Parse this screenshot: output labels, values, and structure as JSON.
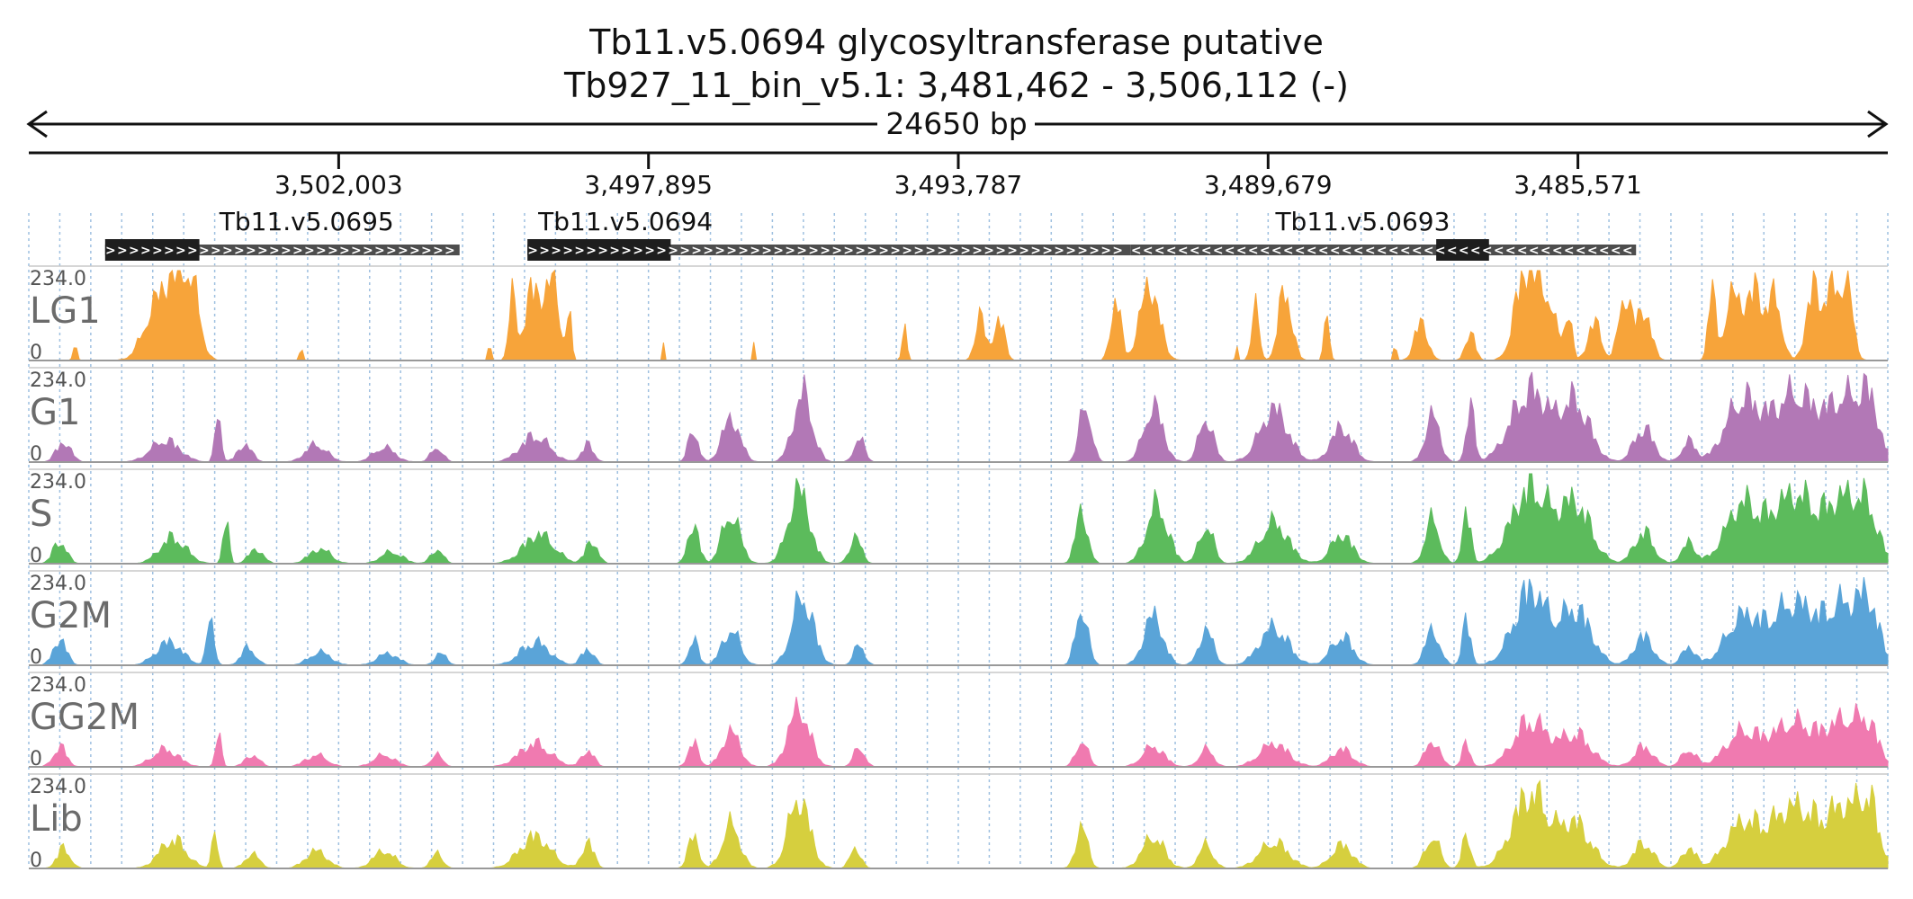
{
  "title": {
    "gene": "Tb11.v5.0694  glycosyltransferase  putative",
    "location": "Tb927_11_bin_v5.1: 3,481,462 - 3,506,112 (-)"
  },
  "span_label": "24650 bp",
  "colors": {
    "LG1": "#f7a43a",
    "G1": "#b278b6",
    "S": "#5cbb5c",
    "G2M": "#5aa4d8",
    "GG2M": "#f07ab0",
    "Lib": "#d6cf3e",
    "gene_exon": "#1e1e1e",
    "gene_utr": "#4d4d4d",
    "grid": "#9ec0e0"
  },
  "chart_data": {
    "type": "area",
    "x_axis": {
      "range": [
        3506112,
        3481462
      ],
      "reversed": true,
      "strand": "-",
      "tick_positions": [
        3502003,
        3497895,
        3493787,
        3489679,
        3485571
      ],
      "tick_labels": [
        "3,502,003",
        "3,497,895",
        "3,493,787",
        "3,489,679",
        "3,485,571"
      ]
    },
    "genes": [
      {
        "name": "Tb11.v5.0695",
        "start": 3505100,
        "end": 3500400,
        "cds_start": 3505100,
        "cds_end": 3503850,
        "direction": "forward"
      },
      {
        "name": "Tb11.v5.0694",
        "start": 3499500,
        "end": 3491500,
        "cds_start": 3499500,
        "cds_end": 3497600,
        "direction": "forward"
      },
      {
        "name": "Tb11.v5.0693",
        "start": 3491500,
        "end": 3484800,
        "cds_start": 3487450,
        "cds_end": 3486750,
        "direction": "reverse"
      }
    ],
    "tracks": [
      {
        "name": "LG1",
        "ymin_label": "0",
        "ymax_label": "234.0",
        "ylim": [
          0,
          234
        ],
        "peaks": [
          [
            3505500,
            60,
            15
          ],
          [
            3504400,
            200,
            110
          ],
          [
            3504150,
            250,
            70
          ],
          [
            3503950,
            234,
            70
          ],
          [
            3502500,
            50,
            14
          ],
          [
            3500000,
            60,
            12
          ],
          [
            3499700,
            200,
            30
          ],
          [
            3499400,
            250,
            85
          ],
          [
            3499150,
            234,
            50
          ],
          [
            3498950,
            160,
            20
          ],
          [
            3497700,
            60,
            8
          ],
          [
            3496500,
            60,
            8
          ],
          [
            3494500,
            100,
            20
          ],
          [
            3493500,
            160,
            40
          ],
          [
            3493250,
            150,
            45
          ],
          [
            3491700,
            234,
            40
          ],
          [
            3491250,
            260,
            80
          ],
          [
            3490100,
            60,
            8
          ],
          [
            3489850,
            200,
            30
          ],
          [
            3489450,
            250,
            55
          ],
          [
            3488900,
            200,
            20
          ],
          [
            3488000,
            60,
            12
          ],
          [
            3487650,
            130,
            55
          ],
          [
            3487000,
            100,
            40
          ],
          [
            3486300,
            234,
            80
          ],
          [
            3486050,
            250,
            100
          ],
          [
            3485700,
            160,
            30
          ],
          [
            3485350,
            130,
            55
          ],
          [
            3484950,
            234,
            50
          ],
          [
            3484700,
            180,
            60
          ],
          [
            3483800,
            234,
            30
          ],
          [
            3483500,
            220,
            80
          ],
          [
            3483200,
            230,
            70
          ],
          [
            3482950,
            200,
            55
          ],
          [
            3482450,
            234,
            60
          ],
          [
            3482200,
            234,
            70
          ],
          [
            3482000,
            230,
            50
          ]
        ]
      },
      {
        "name": "G1",
        "ymin_label": "0",
        "ymax_label": "234.0",
        "ylim": [
          0,
          234
        ],
        "peaks": [
          [
            3505650,
            70,
            60
          ],
          [
            3504300,
            75,
            120
          ],
          [
            3503600,
            180,
            25
          ],
          [
            3503250,
            60,
            60
          ],
          [
            3502300,
            60,
            90
          ],
          [
            3501400,
            50,
            90
          ],
          [
            3500700,
            50,
            50
          ],
          [
            3499400,
            90,
            120
          ],
          [
            3498700,
            60,
            50
          ],
          [
            3497300,
            120,
            40
          ],
          [
            3496800,
            150,
            75
          ],
          [
            3495850,
            234,
            80
          ],
          [
            3495100,
            80,
            45
          ],
          [
            3492100,
            200,
            50
          ],
          [
            3491200,
            190,
            80
          ],
          [
            3490500,
            150,
            60
          ],
          [
            3489600,
            180,
            120
          ],
          [
            3488700,
            120,
            90
          ],
          [
            3487500,
            160,
            60
          ],
          [
            3487000,
            190,
            35
          ],
          [
            3486200,
            250,
            160
          ],
          [
            3485600,
            200,
            120
          ],
          [
            3484700,
            120,
            80
          ],
          [
            3484100,
            70,
            60
          ],
          [
            3483400,
            200,
            140
          ],
          [
            3482700,
            230,
            200
          ],
          [
            3482000,
            200,
            150
          ],
          [
            3481700,
            150,
            80
          ]
        ]
      },
      {
        "name": "S",
        "ymin_label": "0",
        "ymax_label": "234.0",
        "ylim": [
          0,
          234
        ],
        "peaks": [
          [
            3505700,
            80,
            55
          ],
          [
            3504200,
            90,
            110
          ],
          [
            3503500,
            150,
            25
          ],
          [
            3503100,
            50,
            60
          ],
          [
            3502250,
            50,
            90
          ],
          [
            3501300,
            40,
            90
          ],
          [
            3500700,
            50,
            50
          ],
          [
            3499350,
            100,
            130
          ],
          [
            3498650,
            80,
            50
          ],
          [
            3497300,
            140,
            45
          ],
          [
            3496800,
            170,
            75
          ],
          [
            3495900,
            250,
            90
          ],
          [
            3495150,
            90,
            50
          ],
          [
            3492150,
            180,
            50
          ],
          [
            3491150,
            200,
            90
          ],
          [
            3490500,
            130,
            60
          ],
          [
            3489600,
            140,
            120
          ],
          [
            3488700,
            100,
            90
          ],
          [
            3487500,
            150,
            60
          ],
          [
            3487050,
            180,
            35
          ],
          [
            3486200,
            260,
            160
          ],
          [
            3485600,
            200,
            130
          ],
          [
            3484700,
            110,
            80
          ],
          [
            3484100,
            70,
            60
          ],
          [
            3483400,
            190,
            140
          ],
          [
            3482700,
            234,
            200
          ],
          [
            3482000,
            210,
            150
          ],
          [
            3481700,
            110,
            80
          ]
        ]
      },
      {
        "name": "G2M",
        "ymin_label": "0",
        "ymax_label": "234.0",
        "ylim": [
          0,
          234
        ],
        "peaks": [
          [
            3505700,
            90,
            55
          ],
          [
            3504250,
            80,
            110
          ],
          [
            3503700,
            170,
            30
          ],
          [
            3503200,
            60,
            60
          ],
          [
            3502250,
            45,
            90
          ],
          [
            3501350,
            40,
            90
          ],
          [
            3500650,
            40,
            50
          ],
          [
            3499400,
            80,
            120
          ],
          [
            3498700,
            60,
            50
          ],
          [
            3497300,
            90,
            40
          ],
          [
            3496800,
            120,
            75
          ],
          [
            3495850,
            234,
            90
          ],
          [
            3495100,
            70,
            45
          ],
          [
            3492150,
            200,
            50
          ],
          [
            3491200,
            170,
            80
          ],
          [
            3490500,
            120,
            60
          ],
          [
            3489600,
            130,
            120
          ],
          [
            3488700,
            100,
            90
          ],
          [
            3487500,
            120,
            60
          ],
          [
            3487050,
            150,
            35
          ],
          [
            3486200,
            260,
            140
          ],
          [
            3485600,
            190,
            130
          ],
          [
            3484700,
            100,
            80
          ],
          [
            3484100,
            60,
            60
          ],
          [
            3483400,
            150,
            140
          ],
          [
            3482700,
            210,
            210
          ],
          [
            3482000,
            190,
            150
          ],
          [
            3481700,
            150,
            80
          ]
        ]
      },
      {
        "name": "GG2M",
        "ymin_label": "0",
        "ymax_label": "234.0",
        "ylim": [
          0,
          234
        ],
        "peaks": [
          [
            3505700,
            70,
            55
          ],
          [
            3504300,
            60,
            110
          ],
          [
            3503600,
            110,
            25
          ],
          [
            3503150,
            40,
            60
          ],
          [
            3502300,
            40,
            90
          ],
          [
            3501400,
            40,
            90
          ],
          [
            3500700,
            40,
            50
          ],
          [
            3499400,
            80,
            130
          ],
          [
            3498700,
            60,
            50
          ],
          [
            3497300,
            80,
            45
          ],
          [
            3496800,
            120,
            75
          ],
          [
            3495900,
            200,
            90
          ],
          [
            3495100,
            70,
            45
          ],
          [
            3492150,
            90,
            50
          ],
          [
            3491200,
            70,
            90
          ],
          [
            3490500,
            60,
            60
          ],
          [
            3489600,
            80,
            120
          ],
          [
            3488700,
            60,
            90
          ],
          [
            3487500,
            90,
            60
          ],
          [
            3487050,
            80,
            35
          ],
          [
            3486200,
            160,
            140
          ],
          [
            3485600,
            110,
            130
          ],
          [
            3484700,
            70,
            80
          ],
          [
            3484100,
            60,
            60
          ],
          [
            3483400,
            110,
            140
          ],
          [
            3482700,
            150,
            200
          ],
          [
            3482000,
            150,
            150
          ],
          [
            3481700,
            90,
            80
          ]
        ]
      },
      {
        "name": "Lib",
        "ymin_label": "0",
        "ymax_label": "234.0",
        "ylim": [
          0,
          234
        ],
        "peaks": [
          [
            3505650,
            70,
            55
          ],
          [
            3504200,
            100,
            110
          ],
          [
            3503650,
            120,
            25
          ],
          [
            3503150,
            50,
            60
          ],
          [
            3502300,
            60,
            90
          ],
          [
            3501400,
            60,
            90
          ],
          [
            3500700,
            50,
            50
          ],
          [
            3499400,
            110,
            130
          ],
          [
            3498700,
            90,
            50
          ],
          [
            3497300,
            110,
            45
          ],
          [
            3496800,
            150,
            75
          ],
          [
            3495900,
            240,
            90
          ],
          [
            3495150,
            70,
            45
          ],
          [
            3492150,
            140,
            50
          ],
          [
            3491200,
            110,
            90
          ],
          [
            3490500,
            80,
            60
          ],
          [
            3489600,
            90,
            120
          ],
          [
            3488700,
            80,
            90
          ],
          [
            3487500,
            110,
            60
          ],
          [
            3487050,
            120,
            35
          ],
          [
            3486200,
            260,
            150
          ],
          [
            3485600,
            150,
            130
          ],
          [
            3484700,
            90,
            80
          ],
          [
            3484100,
            70,
            60
          ],
          [
            3483400,
            140,
            140
          ],
          [
            3482700,
            210,
            210
          ],
          [
            3482000,
            190,
            150
          ],
          [
            3481700,
            160,
            80
          ]
        ]
      }
    ]
  }
}
